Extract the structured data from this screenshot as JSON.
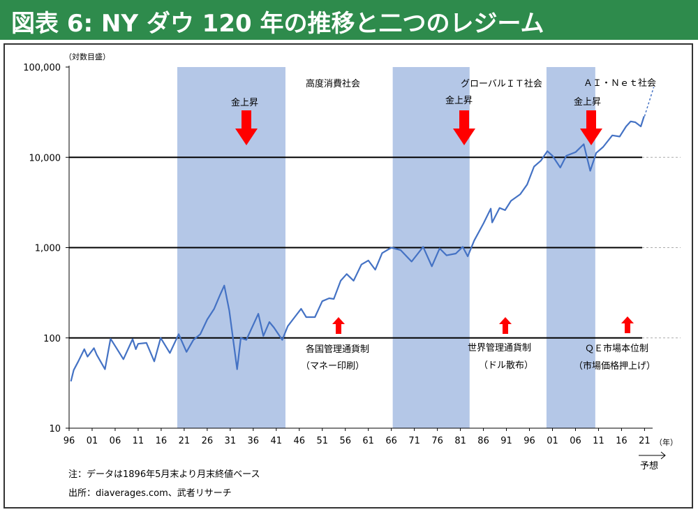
{
  "title": "図表 6: NY ダウ 120 年の推移と二つのレジーム",
  "chart_data": {
    "type": "line",
    "scale": "log",
    "yunit_label": "（対数目盛）",
    "xunit_label": "（年）",
    "forecast_label": "予想",
    "ylim": [
      10,
      100000
    ],
    "xlim": [
      1896,
      2022
    ],
    "yticks": [
      {
        "v": 10,
        "label": "10"
      },
      {
        "v": 100,
        "label": "100"
      },
      {
        "v": 1000,
        "label": "1,000"
      },
      {
        "v": 10000,
        "label": "10,000"
      },
      {
        "v": 100000,
        "label": "100,000"
      }
    ],
    "xticks": [
      {
        "v": 1896,
        "label": "96"
      },
      {
        "v": 1901,
        "label": "01"
      },
      {
        "v": 1906,
        "label": "06"
      },
      {
        "v": 1911,
        "label": "11"
      },
      {
        "v": 1916,
        "label": "16"
      },
      {
        "v": 1921,
        "label": "21"
      },
      {
        "v": 1926,
        "label": "26"
      },
      {
        "v": 1931,
        "label": "31"
      },
      {
        "v": 1936,
        "label": "36"
      },
      {
        "v": 1941,
        "label": "41"
      },
      {
        "v": 1946,
        "label": "46"
      },
      {
        "v": 1951,
        "label": "51"
      },
      {
        "v": 1956,
        "label": "56"
      },
      {
        "v": 1961,
        "label": "61"
      },
      {
        "v": 1966,
        "label": "66"
      },
      {
        "v": 1971,
        "label": "71"
      },
      {
        "v": 1976,
        "label": "76"
      },
      {
        "v": 1981,
        "label": "81"
      },
      {
        "v": 1986,
        "label": "86"
      },
      {
        "v": 1991,
        "label": "91"
      },
      {
        "v": 1996,
        "label": "96"
      },
      {
        "v": 2001,
        "label": "01"
      },
      {
        "v": 2006,
        "label": "06"
      },
      {
        "v": 2011,
        "label": "11"
      },
      {
        "v": 2016,
        "label": "16"
      },
      {
        "v": 2021,
        "label": "21"
      }
    ],
    "hlines": [
      100,
      1000,
      10000
    ],
    "shaded_periods": [
      [
        1919.5,
        1943.0
      ],
      [
        1966.3,
        1983.0
      ],
      [
        1999.7,
        2010.3
      ]
    ],
    "series": [
      {
        "x": [
          1896.4,
          1897.0,
          1898.0,
          1899.3,
          1900.0,
          1901.4,
          1902.0,
          1903.8,
          1905.0,
          1906.1,
          1907.8,
          1909.8,
          1910.5,
          1911.0,
          1912.8,
          1914.5,
          1915.9,
          1917.9,
          1919.8,
          1921.5,
          1923.0,
          1924.5,
          1926.0,
          1927.5,
          1928.8,
          1929.7,
          1930.8,
          1932.5,
          1933.3,
          1934.5,
          1937.1,
          1938.2,
          1939.5,
          1940.5,
          1942.3,
          1943.5,
          1945.0,
          1946.4,
          1947.5,
          1949.4,
          1951.0,
          1952.5,
          1953.5,
          1955.0,
          1956.3,
          1957.8,
          1959.5,
          1961.0,
          1962.5,
          1964.0,
          1966.0,
          1968.0,
          1970.4,
          1972.9,
          1974.8,
          1976.5,
          1978.0,
          1980.0,
          1981.5,
          1982.6,
          1984.0,
          1986.0,
          1987.6,
          1987.9,
          1989.5,
          1990.7,
          1992.0,
          1994.0,
          1995.5,
          1997.0,
          1998.5,
          1999.9,
          2001.0,
          2002.7,
          2004.0,
          2006.0,
          2007.8,
          2009.2,
          2010.5,
          2012.0,
          2014.0,
          2015.6,
          2017.0,
          2018.0,
          2019.0,
          2020.2,
          2020.9
        ],
        "y": [
          33,
          44,
          55,
          75,
          62,
          77,
          65,
          45,
          98,
          80,
          58,
          97,
          75,
          86,
          88,
          55,
          100,
          68,
          110,
          70,
          95,
          110,
          160,
          210,
          300,
          380,
          200,
          45,
          100,
          95,
          185,
          105,
          150,
          130,
          95,
          135,
          170,
          210,
          170,
          170,
          255,
          275,
          270,
          430,
          510,
          430,
          650,
          720,
          570,
          870,
          1000,
          940,
          700,
          1020,
          620,
          980,
          820,
          860,
          1020,
          800,
          1200,
          1850,
          2700,
          1900,
          2750,
          2600,
          3300,
          3900,
          5000,
          7900,
          9200,
          11700,
          10400,
          7700,
          10400,
          11400,
          14000,
          7100,
          11200,
          13000,
          17500,
          17000,
          22000,
          25000,
          24500,
          22000,
          28500
        ]
      }
    ],
    "forecast": {
      "x": [
        2021.0,
        2023.0
      ],
      "y": [
        28500,
        60000
      ]
    },
    "annotations": {
      "era_high_consumption": "高度消費社会",
      "era_global_it": "グローバルＩＴ社会",
      "era_ai_net": "ＡＩ・Ｎｅｔ社会",
      "gold_rise": "金上昇",
      "regime1_line1": "各国管理通貨制",
      "regime1_line2": "（マネー印刷）",
      "regime2_line1": "世界管理通貨制",
      "regime2_line2": "（ドル散布）",
      "regime3_line1": "ＱＥ市場本位制",
      "regime3_line2": "（市場価格押上げ）"
    },
    "colors": {
      "line": "#4472c4",
      "shade": "#b4c7e7",
      "arrow": "#ff0000",
      "title_bg": "#2e8b4c",
      "axis": "#000000"
    }
  },
  "footnotes": {
    "note": "注：データは1896年5月末より月末終値ベース",
    "source": "出所：diaverages.com、武者リサーチ"
  }
}
